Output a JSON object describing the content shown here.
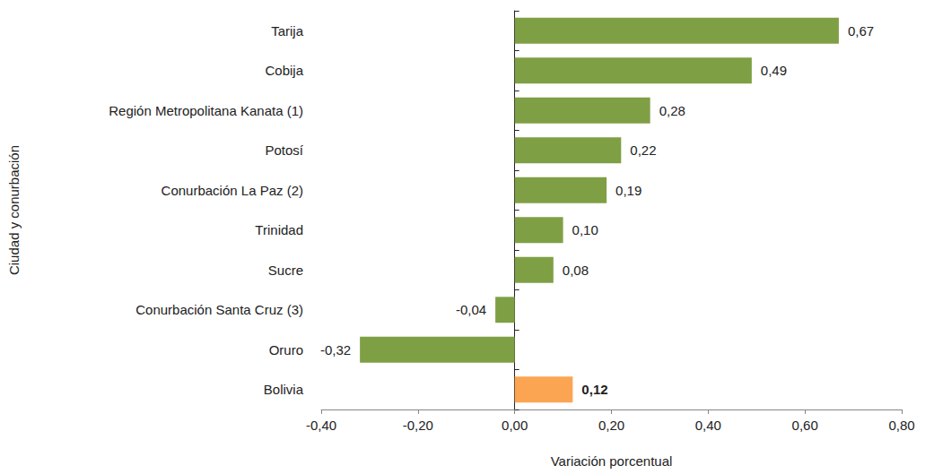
{
  "chart_data": {
    "type": "bar",
    "orientation": "horizontal",
    "x_label": "Variación porcentual",
    "y_label": "Ciudad y conurbación",
    "categories": [
      "Tarija",
      "Cobija",
      "Región Metropolitana Kanata (1)",
      "Potosí",
      "Conurbación La Paz (2)",
      "Trinidad",
      "Sucre",
      "Conurbación Santa Cruz (3)",
      "Oruro",
      "Bolivia"
    ],
    "values": [
      0.67,
      0.49,
      0.28,
      0.22,
      0.19,
      0.1,
      0.08,
      -0.04,
      -0.32,
      0.12
    ],
    "value_labels": [
      "0,67",
      "0,49",
      "0,28",
      "0,22",
      "0,19",
      "0,10",
      "0,08",
      "-0,04",
      "-0,32",
      "0,12"
    ],
    "colors": [
      "#7f9f45",
      "#7f9f45",
      "#7f9f45",
      "#7f9f45",
      "#7f9f45",
      "#7f9f45",
      "#7f9f45",
      "#7f9f45",
      "#7f9f45",
      "#fba552"
    ],
    "xlim": [
      -0.4,
      0.8
    ],
    "xticks": [
      {
        "value": -0.4,
        "label": "-0,40"
      },
      {
        "value": -0.2,
        "label": "-0,20"
      },
      {
        "value": 0,
        "label": "0,00"
      },
      {
        "value": 0.2,
        "label": "0,20"
      },
      {
        "value": 0.4,
        "label": "0,40"
      },
      {
        "value": 0.6,
        "label": "0,60"
      },
      {
        "value": 0.8,
        "label": "0,80"
      }
    ],
    "grid": false,
    "data_labels": true
  }
}
